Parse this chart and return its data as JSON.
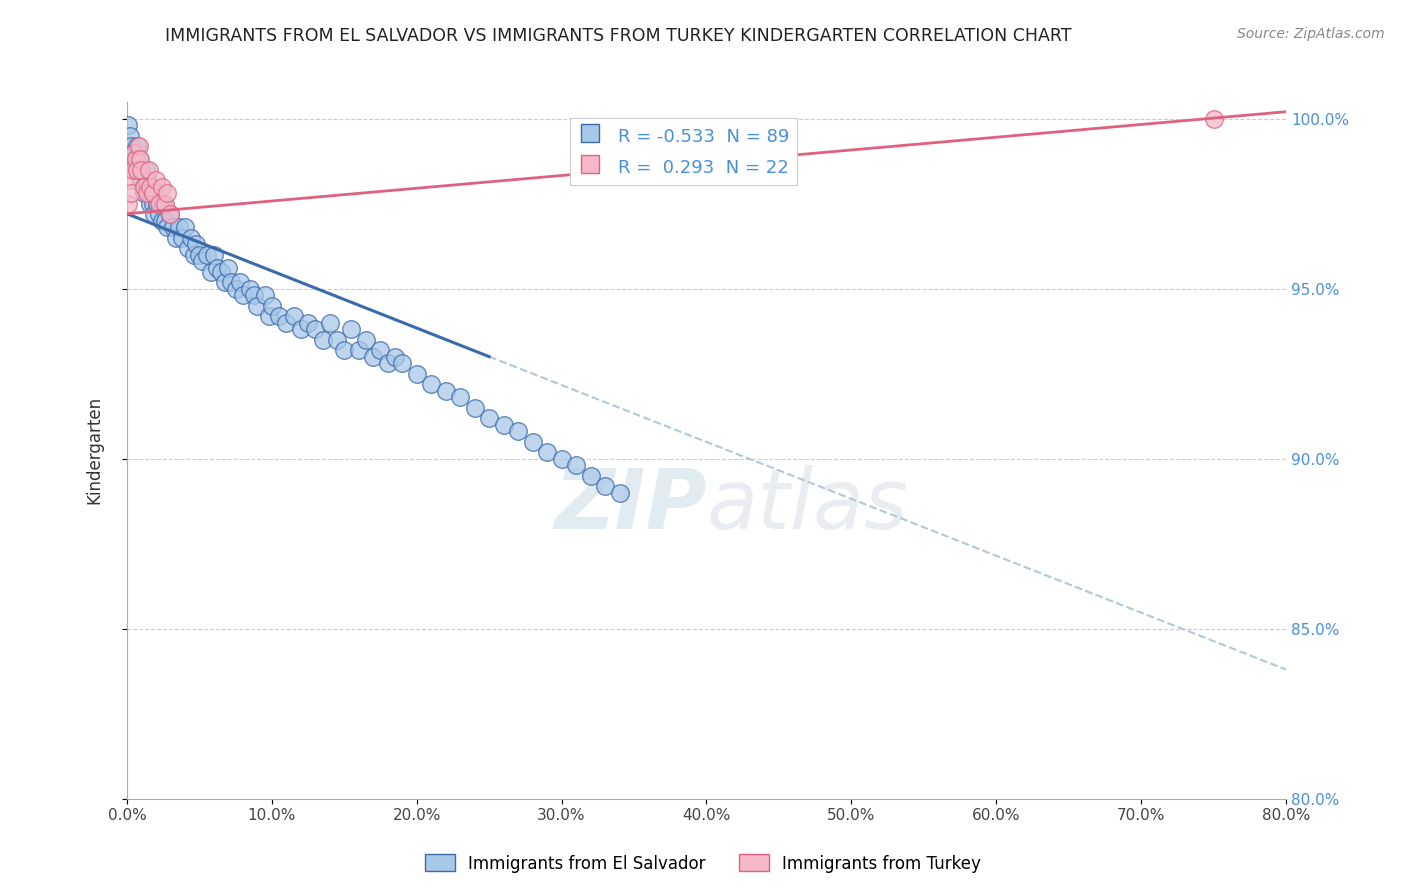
{
  "title": "IMMIGRANTS FROM EL SALVADOR VS IMMIGRANTS FROM TURKEY KINDERGARTEN CORRELATION CHART",
  "source": "Source: ZipAtlas.com",
  "xlabel": "",
  "ylabel": "Kindergarten",
  "watermark_zip": "ZIP",
  "watermark_atlas": "atlas",
  "legend_label_1": "Immigrants from El Salvador",
  "legend_label_2": "Immigrants from Turkey",
  "R1": -0.533,
  "N1": 89,
  "R2": 0.293,
  "N2": 22,
  "color1": "#a8c8e8",
  "color2": "#f4b8c8",
  "line_color1": "#3a6aaa",
  "line_color2": "#e06080",
  "dashed_line_color": "#b0c8d8",
  "background_color": "#ffffff",
  "grid_color": "#cccccc",
  "xlim_pct": [
    0.0,
    0.8
  ],
  "ylim_pct": [
    0.8,
    1.005
  ],
  "xtick_vals": [
    0.0,
    0.1,
    0.2,
    0.3,
    0.4,
    0.5,
    0.6,
    0.7,
    0.8
  ],
  "ytick_vals": [
    0.8,
    0.85,
    0.9,
    0.95,
    1.0
  ],
  "el_salvador_x": [
    0.001,
    0.002,
    0.003,
    0.004,
    0.005,
    0.006,
    0.007,
    0.008,
    0.009,
    0.01,
    0.011,
    0.012,
    0.013,
    0.014,
    0.015,
    0.016,
    0.017,
    0.018,
    0.019,
    0.02,
    0.021,
    0.022,
    0.023,
    0.024,
    0.025,
    0.026,
    0.028,
    0.03,
    0.032,
    0.034,
    0.036,
    0.038,
    0.04,
    0.042,
    0.044,
    0.046,
    0.048,
    0.05,
    0.052,
    0.055,
    0.058,
    0.06,
    0.062,
    0.065,
    0.068,
    0.07,
    0.072,
    0.075,
    0.078,
    0.08,
    0.085,
    0.088,
    0.09,
    0.095,
    0.098,
    0.1,
    0.105,
    0.11,
    0.115,
    0.12,
    0.125,
    0.13,
    0.135,
    0.14,
    0.145,
    0.15,
    0.155,
    0.16,
    0.165,
    0.17,
    0.175,
    0.18,
    0.185,
    0.19,
    0.2,
    0.21,
    0.22,
    0.23,
    0.24,
    0.25,
    0.26,
    0.27,
    0.28,
    0.29,
    0.3,
    0.31,
    0.32,
    0.33,
    0.34
  ],
  "el_salvador_y": [
    0.998,
    0.995,
    0.992,
    0.99,
    0.988,
    0.985,
    0.992,
    0.988,
    0.985,
    0.982,
    0.98,
    0.978,
    0.985,
    0.982,
    0.978,
    0.975,
    0.98,
    0.975,
    0.972,
    0.978,
    0.975,
    0.972,
    0.975,
    0.97,
    0.975,
    0.97,
    0.968,
    0.972,
    0.968,
    0.965,
    0.968,
    0.965,
    0.968,
    0.962,
    0.965,
    0.96,
    0.963,
    0.96,
    0.958,
    0.96,
    0.955,
    0.96,
    0.956,
    0.955,
    0.952,
    0.956,
    0.952,
    0.95,
    0.952,
    0.948,
    0.95,
    0.948,
    0.945,
    0.948,
    0.942,
    0.945,
    0.942,
    0.94,
    0.942,
    0.938,
    0.94,
    0.938,
    0.935,
    0.94,
    0.935,
    0.932,
    0.938,
    0.932,
    0.935,
    0.93,
    0.932,
    0.928,
    0.93,
    0.928,
    0.925,
    0.922,
    0.92,
    0.918,
    0.915,
    0.912,
    0.91,
    0.908,
    0.905,
    0.902,
    0.9,
    0.898,
    0.895,
    0.892,
    0.89
  ],
  "turkey_x": [
    0.001,
    0.002,
    0.003,
    0.004,
    0.005,
    0.006,
    0.007,
    0.008,
    0.009,
    0.01,
    0.012,
    0.014,
    0.015,
    0.016,
    0.018,
    0.02,
    0.022,
    0.024,
    0.026,
    0.028,
    0.03,
    0.75
  ],
  "turkey_y": [
    0.975,
    0.982,
    0.978,
    0.985,
    0.99,
    0.988,
    0.985,
    0.992,
    0.988,
    0.985,
    0.98,
    0.978,
    0.985,
    0.98,
    0.978,
    0.982,
    0.975,
    0.98,
    0.975,
    0.978,
    0.972,
    1.0
  ],
  "blue_line_x0": 0.0,
  "blue_line_y0": 0.972,
  "blue_line_x1": 0.25,
  "blue_line_y1": 0.93,
  "dash_line_x0": 0.25,
  "dash_line_y0": 0.93,
  "dash_line_x1": 0.8,
  "dash_line_y1": 0.838,
  "pink_line_x0": 0.0,
  "pink_line_y0": 0.972,
  "pink_line_x1": 0.8,
  "pink_line_y1": 1.002
}
